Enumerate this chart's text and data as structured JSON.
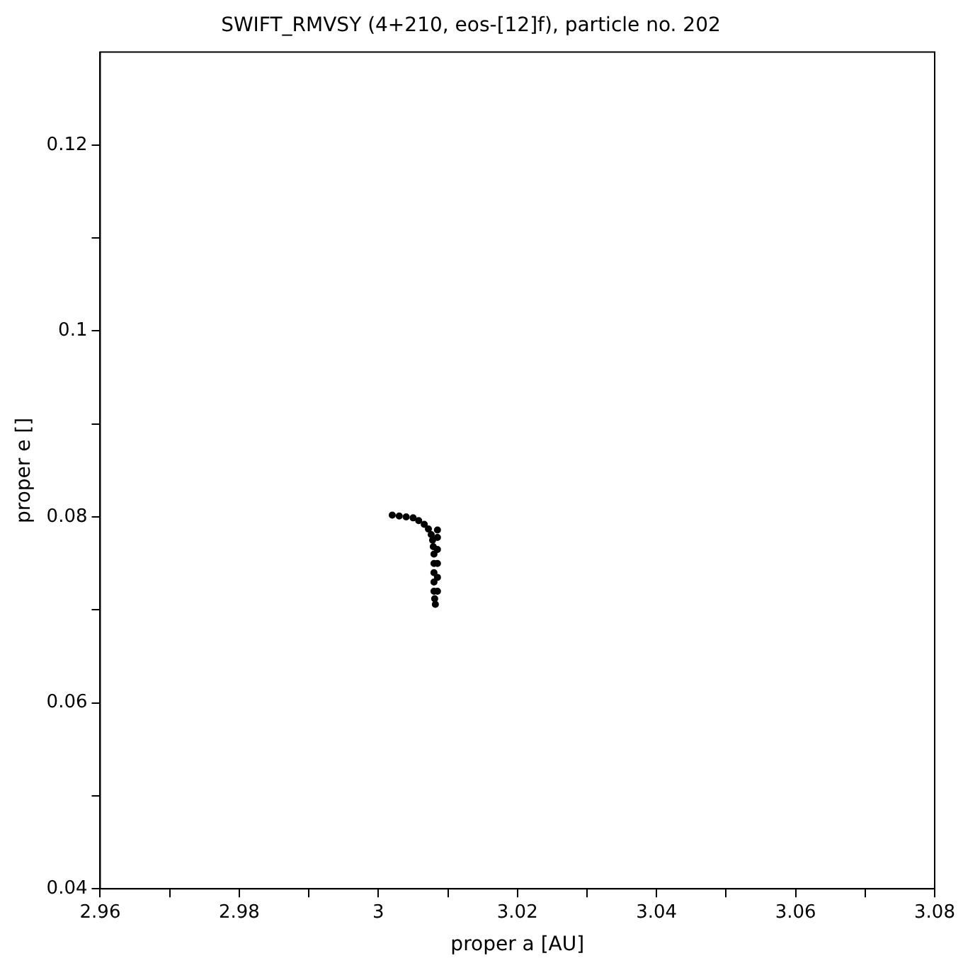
{
  "chart_data": {
    "type": "scatter",
    "title": "SWIFT_RMVSY (4+210, eos-[12]f), particle no. 202",
    "xlabel": "proper a [AU]",
    "ylabel": "proper e []",
    "xlim": [
      2.96,
      3.08
    ],
    "xticks": [
      2.96,
      {
        "value": 2.97,
        "label": null
      },
      2.98,
      {
        "value": 2.99,
        "label": null
      },
      {
        "value": 3.0,
        "label": "3"
      },
      {
        "value": 3.01,
        "label": null
      },
      3.02,
      {
        "value": 3.03,
        "label": null
      },
      3.04,
      {
        "value": 3.05,
        "label": null
      },
      3.06,
      {
        "value": 3.07,
        "label": null
      },
      3.08
    ],
    "ylim": [
      0.04,
      0.13
    ],
    "yticks": [
      0.04,
      {
        "value": 0.05,
        "label": null
      },
      0.06,
      {
        "value": 0.07,
        "label": null
      },
      0.08,
      {
        "value": 0.09,
        "label": null
      },
      {
        "value": 0.1,
        "label": "0.1"
      },
      {
        "value": 0.11,
        "label": null
      },
      0.12
    ],
    "grid": false,
    "legend": false,
    "marker": "circle",
    "series": [
      {
        "color": "#000000",
        "x": [
          3.002,
          3.003,
          3.004,
          3.005,
          3.0058,
          3.0066,
          3.0072,
          3.0076,
          3.0078,
          3.0079,
          3.008,
          3.008,
          3.008,
          3.008,
          3.008,
          3.0081,
          3.0082,
          3.0085,
          3.0085,
          3.0085,
          3.0085,
          3.0085,
          3.0085
        ],
        "values": [
          0.0802,
          0.0801,
          0.08,
          0.0799,
          0.0796,
          0.0792,
          0.0787,
          0.0781,
          0.0775,
          0.0768,
          0.076,
          0.075,
          0.074,
          0.073,
          0.072,
          0.0712,
          0.0706,
          0.072,
          0.0735,
          0.075,
          0.0765,
          0.0778,
          0.0786
        ]
      }
    ]
  }
}
